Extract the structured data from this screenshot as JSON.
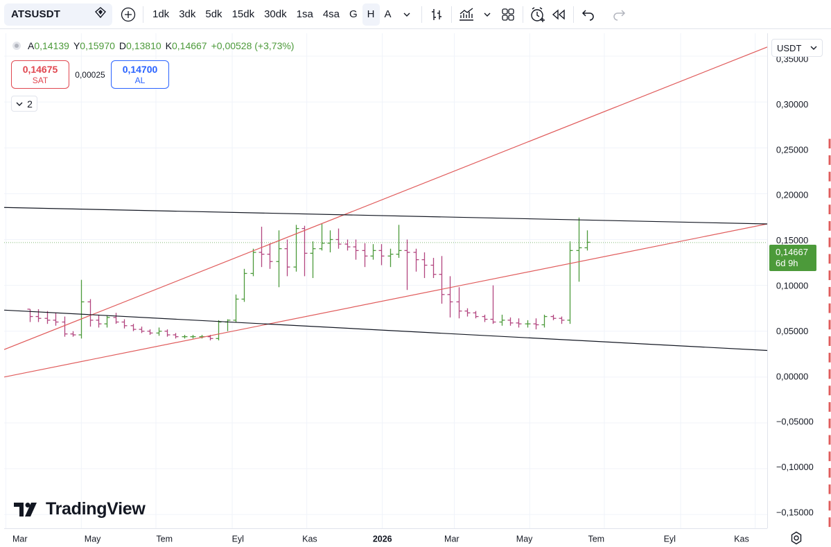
{
  "toolbar": {
    "symbol": "ATSUSDT",
    "timeframes": [
      "1dk",
      "3dk",
      "5dk",
      "15dk",
      "30dk",
      "1sa",
      "4sa",
      "G",
      "H",
      "A"
    ],
    "active_timeframe": "H",
    "icons": [
      "add-symbol-icon",
      "chevron-down-icon",
      "bar-style-icon",
      "indicators-icon",
      "layout-grid-icon",
      "alert-icon",
      "replay-icon",
      "undo-icon",
      "redo-icon"
    ]
  },
  "legend": {
    "open_label": "A",
    "open": "0,14139",
    "high_label": "Y",
    "high": "0,15970",
    "low_label": "D",
    "low": "0,13810",
    "close_label": "K",
    "close": "0,14667",
    "change": "+0,00528 (+3,73%)"
  },
  "trade": {
    "sell_price": "0,14675",
    "sell_label": "SAT",
    "spread": "0,00025",
    "buy_price": "0,14700",
    "buy_label": "AL"
  },
  "collapse": {
    "count": "2"
  },
  "currency": "USDT",
  "price_badge": {
    "price": "0,14667",
    "countdown": "6d 9h"
  },
  "logo": {
    "text": "TradingView"
  },
  "colors": {
    "up": "#4c9a3a",
    "down": "#b2457f",
    "trend_red": "#e05b5b",
    "trend_black": "#131722",
    "grid": "#f0f3fa"
  },
  "chart_data": {
    "type": "ohlc",
    "y_ticks": [
      "0,35000",
      "0,30000",
      "0,25000",
      "0,20000",
      "0,15000",
      "0,10000",
      "0,05000",
      "0,00000",
      "−0,05000",
      "−0,10000",
      "−0,15000"
    ],
    "y_tick_values": [
      0.35,
      0.3,
      0.25,
      0.2,
      0.15,
      0.1,
      0.05,
      0.0,
      -0.05,
      -0.1,
      -0.15
    ],
    "ylim": [
      -0.165,
      0.375
    ],
    "x_ticks": [
      {
        "label": "Mar",
        "week": -2.8,
        "bold": false
      },
      {
        "label": "May",
        "week": 6.0,
        "bold": false
      },
      {
        "label": "Tem",
        "week": 14.7,
        "bold": false
      },
      {
        "label": "Eyl",
        "week": 23.6,
        "bold": false
      },
      {
        "label": "Kas",
        "week": 32.3,
        "bold": false
      },
      {
        "label": "2026",
        "week": 41.1,
        "bold": true
      },
      {
        "label": "Mar",
        "week": 49.5,
        "bold": false
      },
      {
        "label": "May",
        "week": 58.3,
        "bold": false
      },
      {
        "label": "Tem",
        "week": 67.0,
        "bold": false
      },
      {
        "label": "Eyl",
        "week": 75.9,
        "bold": false
      },
      {
        "label": "Kas",
        "week": 84.6,
        "bold": false
      }
    ],
    "xlim": [
      -3.0,
      86.0
    ],
    "bars": [
      [
        0.074,
        0.074,
        0.06,
        0.066
      ],
      [
        0.066,
        0.074,
        0.06,
        0.064
      ],
      [
        0.064,
        0.072,
        0.058,
        0.062
      ],
      [
        0.062,
        0.07,
        0.056,
        0.06
      ],
      [
        0.06,
        0.066,
        0.044,
        0.047
      ],
      [
        0.047,
        0.05,
        0.044,
        0.046
      ],
      [
        0.046,
        0.106,
        0.042,
        0.082
      ],
      [
        0.082,
        0.085,
        0.055,
        0.062
      ],
      [
        0.062,
        0.068,
        0.054,
        0.058
      ],
      [
        0.058,
        0.067,
        0.054,
        0.065
      ],
      [
        0.065,
        0.07,
        0.058,
        0.06
      ],
      [
        0.06,
        0.063,
        0.053,
        0.056
      ],
      [
        0.056,
        0.058,
        0.05,
        0.052
      ],
      [
        0.052,
        0.055,
        0.048,
        0.05
      ],
      [
        0.05,
        0.052,
        0.046,
        0.048
      ],
      [
        0.048,
        0.054,
        0.045,
        0.05
      ],
      [
        0.05,
        0.052,
        0.044,
        0.046
      ],
      [
        0.046,
        0.048,
        0.042,
        0.044
      ],
      [
        0.044,
        0.046,
        0.042,
        0.044
      ],
      [
        0.044,
        0.046,
        0.042,
        0.044
      ],
      [
        0.044,
        0.046,
        0.042,
        0.044
      ],
      [
        0.044,
        0.046,
        0.04,
        0.042
      ],
      [
        0.042,
        0.062,
        0.04,
        0.06
      ],
      [
        0.06,
        0.063,
        0.05,
        0.062
      ],
      [
        0.062,
        0.09,
        0.06,
        0.085
      ],
      [
        0.085,
        0.118,
        0.082,
        0.113
      ],
      [
        0.113,
        0.14,
        0.11,
        0.136
      ],
      [
        0.136,
        0.164,
        0.12,
        0.134
      ],
      [
        0.134,
        0.146,
        0.118,
        0.126
      ],
      [
        0.126,
        0.16,
        0.098,
        0.14
      ],
      [
        0.14,
        0.15,
        0.11,
        0.12
      ],
      [
        0.12,
        0.166,
        0.115,
        0.162
      ],
      [
        0.162,
        0.165,
        0.11,
        0.135
      ],
      [
        0.135,
        0.148,
        0.108,
        0.14
      ],
      [
        0.14,
        0.167,
        0.138,
        0.146
      ],
      [
        0.146,
        0.16,
        0.136,
        0.15
      ],
      [
        0.15,
        0.162,
        0.14,
        0.145
      ],
      [
        0.145,
        0.15,
        0.138,
        0.142
      ],
      [
        0.142,
        0.15,
        0.128,
        0.138
      ],
      [
        0.138,
        0.146,
        0.12,
        0.132
      ],
      [
        0.132,
        0.145,
        0.128,
        0.138
      ],
      [
        0.138,
        0.145,
        0.122,
        0.132
      ],
      [
        0.132,
        0.14,
        0.12,
        0.134
      ],
      [
        0.134,
        0.166,
        0.13,
        0.138
      ],
      [
        0.138,
        0.15,
        0.095,
        0.136
      ],
      [
        0.136,
        0.14,
        0.115,
        0.128
      ],
      [
        0.128,
        0.136,
        0.108,
        0.122
      ],
      [
        0.122,
        0.13,
        0.108,
        0.112
      ],
      [
        0.112,
        0.132,
        0.08,
        0.09
      ],
      [
        0.09,
        0.11,
        0.065,
        0.082
      ],
      [
        0.082,
        0.098,
        0.064,
        0.072
      ],
      [
        0.072,
        0.075,
        0.066,
        0.07
      ],
      [
        0.07,
        0.072,
        0.064,
        0.066
      ],
      [
        0.066,
        0.068,
        0.06,
        0.063
      ],
      [
        0.063,
        0.1,
        0.058,
        0.06
      ],
      [
        0.06,
        0.068,
        0.056,
        0.062
      ],
      [
        0.062,
        0.065,
        0.056,
        0.059
      ],
      [
        0.059,
        0.064,
        0.054,
        0.058
      ],
      [
        0.058,
        0.062,
        0.054,
        0.058
      ],
      [
        0.058,
        0.064,
        0.052,
        0.057
      ],
      [
        0.057,
        0.068,
        0.054,
        0.066
      ],
      [
        0.066,
        0.068,
        0.062,
        0.064
      ],
      [
        0.064,
        0.066,
        0.058,
        0.062
      ],
      [
        0.062,
        0.148,
        0.058,
        0.138
      ],
      [
        0.138,
        0.174,
        0.104,
        0.141
      ],
      [
        0.141,
        0.16,
        0.138,
        0.147
      ]
    ],
    "trendlines": [
      {
        "color": "red",
        "from": [
          -3.0,
          0.03
        ],
        "to": [
          86.0,
          0.36
        ]
      },
      {
        "color": "red",
        "from": [
          -3.0,
          0.0
        ],
        "to": [
          86.0,
          0.167
        ]
      },
      {
        "color": "black",
        "from": [
          -3.0,
          0.185
        ],
        "to": [
          86.0,
          0.167
        ]
      },
      {
        "color": "black",
        "from": [
          -3.0,
          0.073
        ],
        "to": [
          86.0,
          0.029
        ]
      }
    ],
    "last_price": 0.14667
  }
}
